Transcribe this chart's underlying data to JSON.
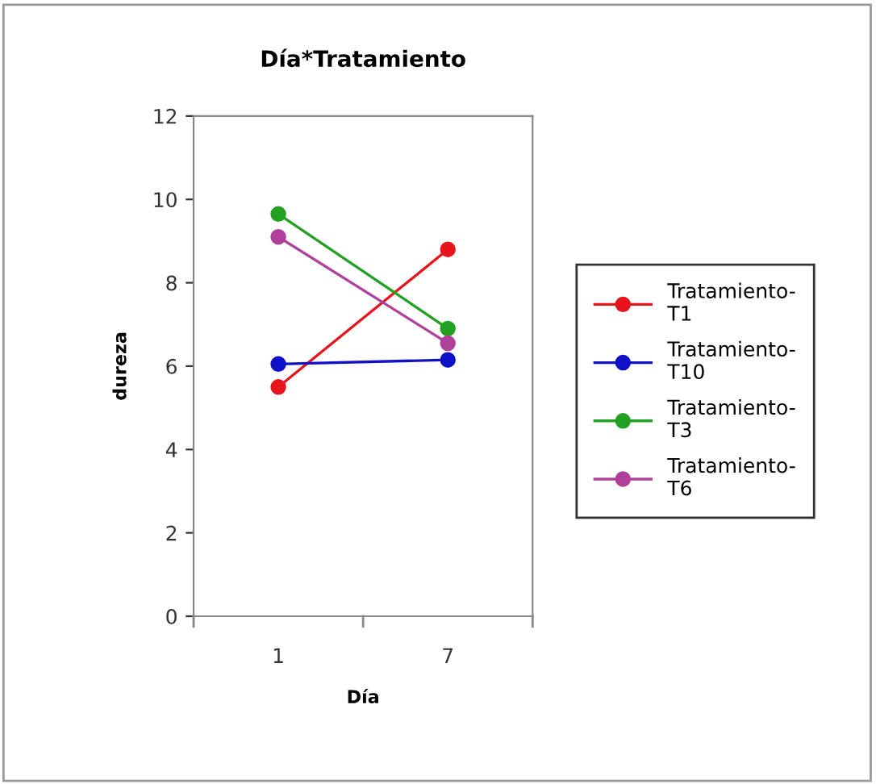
{
  "chart_data": {
    "type": "line",
    "title": "Día*Tratamiento",
    "xlabel": "Día",
    "ylabel": "dureza",
    "categories": [
      "1",
      "7"
    ],
    "series": [
      {
        "name": "Tratamiento-T1",
        "color": "#e8141c",
        "values": [
          5.5,
          8.8
        ]
      },
      {
        "name": "Tratamiento-T10",
        "color": "#1010c8",
        "values": [
          6.05,
          6.15
        ]
      },
      {
        "name": "Tratamiento-T3",
        "color": "#22a022",
        "values": [
          9.65,
          6.9
        ]
      },
      {
        "name": "Tratamiento-T6",
        "color": "#b0409c",
        "values": [
          9.1,
          6.55
        ]
      }
    ],
    "ylim": [
      0,
      12
    ],
    "yticks": [
      0,
      2,
      4,
      6,
      8,
      10,
      12
    ],
    "grid": false,
    "legend": "right",
    "marker": "circle",
    "line_style": "solid"
  }
}
